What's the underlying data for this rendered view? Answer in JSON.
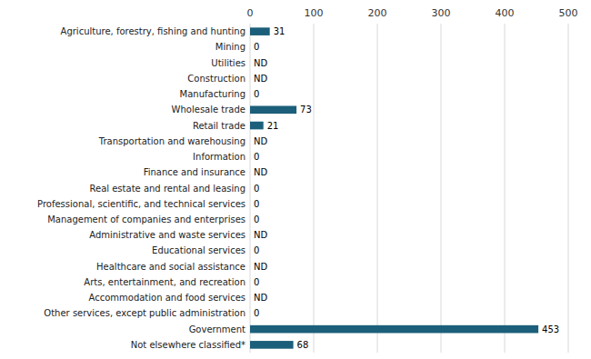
{
  "chart_data": {
    "type": "bar",
    "orientation": "horizontal",
    "categories": [
      "Agriculture, forestry, fishing and hunting",
      "Mining",
      "Utilities",
      "Construction",
      "Manufacturing",
      "Wholesale trade",
      "Retail trade",
      "Transportation and warehousing",
      "Information",
      "Finance and insurance",
      "Real estate and rental and leasing",
      "Professional, scientific, and technical services",
      "Management of companies and enterprises",
      "Administrative and waste services",
      "Educational services",
      "Healthcare and social assistance",
      "Arts, entertainment, and recreation",
      "Accommodation and food services",
      "Other services, except public administration",
      "Government",
      "Not elsewhere classified*"
    ],
    "values": [
      31,
      0,
      null,
      null,
      0,
      73,
      21,
      null,
      0,
      null,
      0,
      0,
      0,
      null,
      0,
      null,
      0,
      null,
      0,
      453,
      68
    ],
    "value_labels": [
      "31",
      "0",
      "ND",
      "ND",
      "0",
      "73",
      "21",
      "ND",
      "0",
      "ND",
      "0",
      "0",
      "0",
      "ND",
      "0",
      "ND",
      "0",
      "ND",
      "0",
      "453",
      "68"
    ],
    "data_labels": true,
    "color": "#1c5f7a",
    "xlim": [
      0,
      500
    ],
    "xticks": [
      0,
      100,
      200,
      300,
      400,
      500
    ],
    "grid": true
  }
}
